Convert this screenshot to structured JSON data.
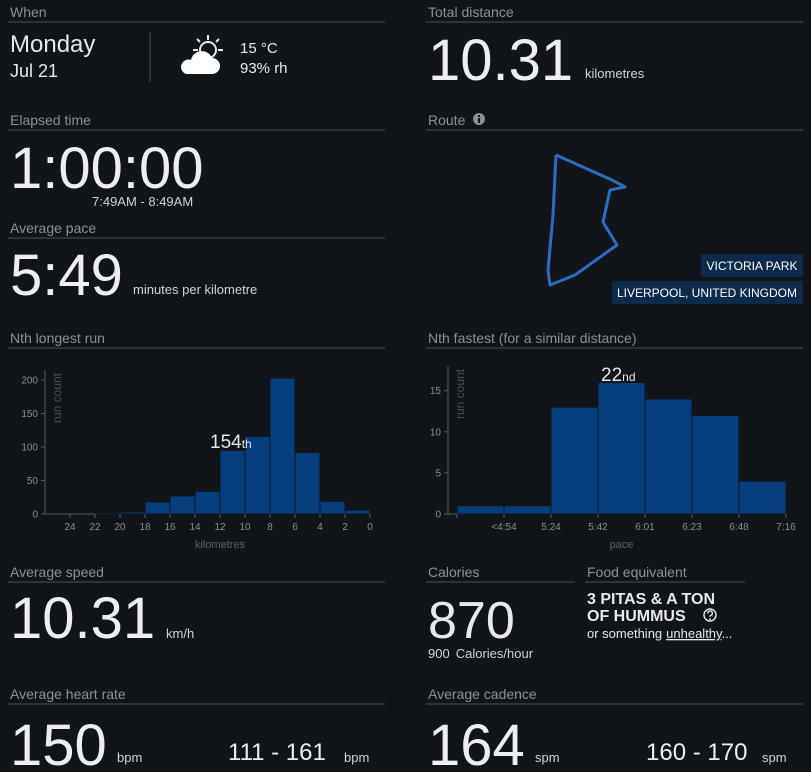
{
  "when": {
    "label": "When",
    "day": "Monday",
    "date": "Jul 21",
    "temperature": "15 °C",
    "humidity": "93% rh"
  },
  "total_distance": {
    "label": "Total distance",
    "value": "10.31",
    "unit": "kilometres"
  },
  "elapsed_time": {
    "label": "Elapsed time",
    "value": "1:00:00",
    "range": "7:49AM - 8:49AM"
  },
  "average_pace": {
    "label": "Average pace",
    "value": "5:49",
    "unit": "minutes per kilometre"
  },
  "route": {
    "label": "Route",
    "park": "VICTORIA PARK",
    "city": "LIVERPOOL, UNITED KINGDOM"
  },
  "chart_data": [
    {
      "type": "histogram",
      "title": "Nth longest run",
      "xlabel": "kilometres",
      "ylabel": "run count",
      "bins": [
        24,
        22,
        20,
        18,
        16,
        14,
        12,
        10,
        8,
        6,
        4,
        2,
        0
      ],
      "values": [
        0,
        2,
        3,
        18,
        27,
        34,
        95,
        116,
        203,
        92,
        19,
        6
      ],
      "xlim": [
        24,
        0
      ],
      "xticks": [
        24,
        22,
        20,
        18,
        16,
        14,
        12,
        10,
        8,
        6,
        4,
        2,
        0
      ],
      "ylim": [
        0,
        215
      ],
      "yticks": [
        0,
        50,
        100,
        150,
        200
      ],
      "color": "#063d7c",
      "annotation": {
        "text": "154",
        "suffix": "th"
      }
    },
    {
      "type": "histogram",
      "title": "Nth fastest (for a similar distance)",
      "xlabel": "pace",
      "ylabel": "run count",
      "bins": [
        null,
        "<4:54",
        "5:24",
        "5:42",
        "6:01",
        "6:23",
        "6:48",
        "7:16"
      ],
      "values": [
        1,
        1,
        13,
        16,
        14,
        12,
        4
      ],
      "ylim": [
        0,
        18
      ],
      "yticks": [
        0,
        5,
        10,
        15
      ],
      "color": "#063d7c",
      "annotation": {
        "text": "22",
        "suffix": "nd"
      }
    }
  ],
  "average_speed": {
    "label": "Average speed",
    "value": "10.31",
    "unit": "km/h"
  },
  "calories": {
    "label": "Calories",
    "value": "870",
    "rate": "900",
    "rate_unit": "Calories/hour"
  },
  "food_equivalent": {
    "label": "Food equivalent",
    "line1": "3 PITAS & A TON",
    "line2": "OF HUMMUS",
    "note": "or something",
    "link": "unhealthy",
    "ellipsis": "..."
  },
  "heart_rate": {
    "label": "Average heart rate",
    "value": "150",
    "unit": "bpm",
    "range": "111 - 161",
    "range_unit": "bpm"
  },
  "cadence": {
    "label": "Average cadence",
    "value": "164",
    "unit": "spm",
    "range": "160 - 170",
    "range_unit": "spm"
  }
}
